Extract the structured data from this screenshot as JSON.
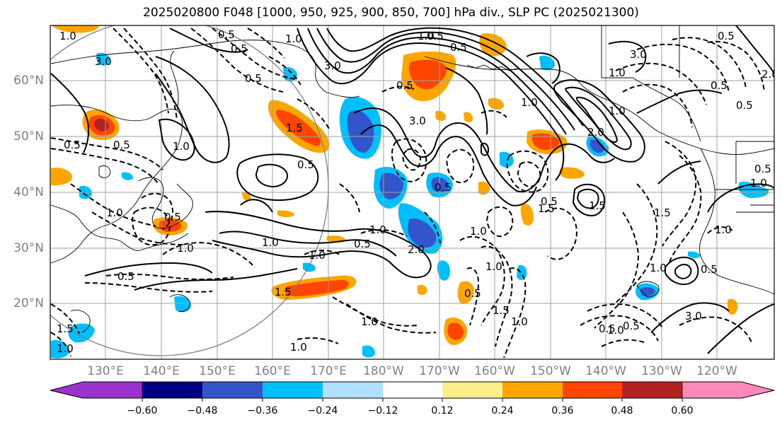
{
  "title": "2025020800 F048 [1000, 950, 925, 900, 850, 700] hPa div., SLP PC (2025021300)",
  "lat_labels": [
    "60°N",
    "50°N",
    "40°N",
    "30°N",
    "20°N"
  ],
  "lon_labels": [
    "130°E",
    "140°E",
    "150°E",
    "160°E",
    "170°E",
    "180°W",
    "170°W",
    "160°W",
    "150°W",
    "140°W",
    "130°W",
    "120°W"
  ],
  "colorbar": {
    "ticks": [
      "−0.60",
      "−0.48",
      "−0.36",
      "−0.24",
      "−0.12",
      "0.12",
      "0.24",
      "0.36",
      "0.48",
      "0.60"
    ],
    "colors": [
      "#9933cc",
      "#000080",
      "#3355cc",
      "#00bfff",
      "#b0e0ff",
      "#ffffff",
      "#ffec8b",
      "#ffa500",
      "#ff4500",
      "#b22222",
      "#ff88bb"
    ]
  },
  "contour_labels": {
    "solid": [
      "1.0",
      "0.5",
      "3.0",
      "3.0",
      "2.0",
      "1.0",
      "3.0",
      "3.0",
      "1.0",
      "1.0",
      "1.0",
      "2.0",
      "1.5",
      "1.0",
      "0.5",
      "1.5",
      "0.5",
      "3.0",
      "1.0",
      "2.0",
      "0.5",
      "1.5",
      "1.0",
      "0.5",
      "0.5",
      "0.5",
      "0.5",
      "1.0"
    ],
    "dashed": [
      "0.5",
      "0.5",
      "0.5",
      "1.0",
      "1.0",
      "0.5",
      "0.5",
      "0.5",
      "1.0",
      "0.5",
      "1.0",
      "1.0",
      "0.5",
      "1.0",
      "0.5",
      "1.0",
      "1.5",
      "1.0",
      "1.0",
      "1.0",
      "1.5",
      "1.5",
      "1.0",
      "0.5",
      "0.5",
      "1.0",
      "1.5",
      "1.0",
      "0.5",
      "0.5",
      "0.5"
    ]
  }
}
